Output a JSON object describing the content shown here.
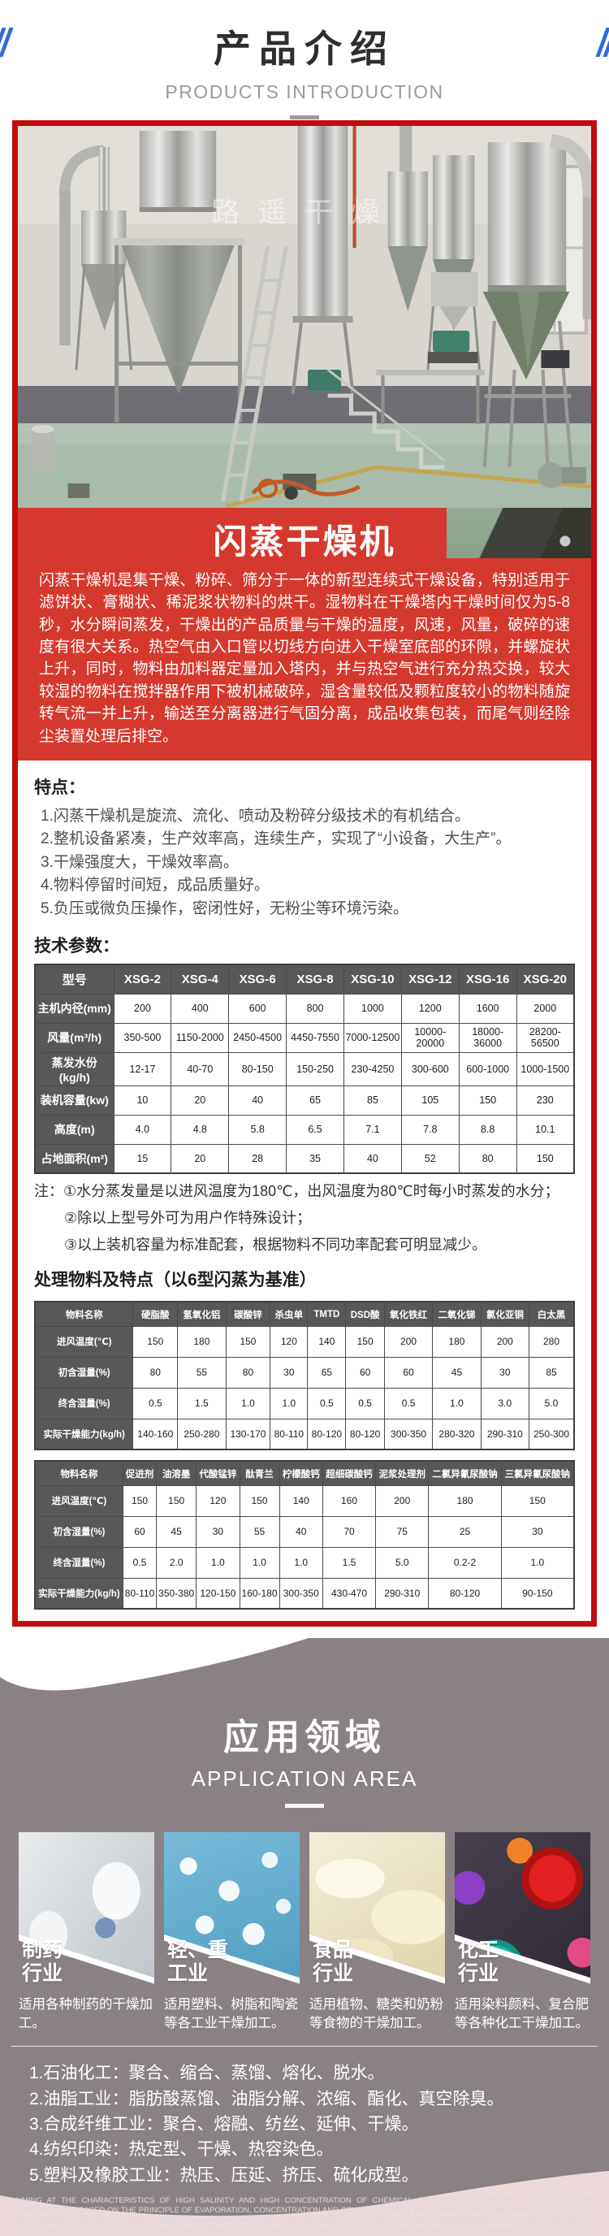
{
  "colors": {
    "accent_blue": "#2f6bdb",
    "red_border": "#c20d0d",
    "banner_red": "#d5392d",
    "section_gray": "#8a8185",
    "wave_pink": "#ecd9da",
    "table_header_bg": "#58585a"
  },
  "header": {
    "title": "产品介绍",
    "subtitle": "PRODUCTS INTRODUCTION"
  },
  "product": {
    "watermark": "路遥干燥",
    "name": "闪蒸干燥机",
    "description": "闪蒸干燥机是集干燥、粉碎、筛分于一体的新型连续式干燥设备，特别适用于滤饼状、膏糊状、稀泥浆状物料的烘干。湿物料在干燥塔内干燥时间仅为5-8秒，水分瞬间蒸发，干燥出的产品质量与干燥的温度，风速，风量，破碎的速度有很大关系。热空气由入口管以切线方向进入干燥室底部的环隙，并螺旋状上升，同时，物料由加料器定量加入塔内，并与热空气进行充分热交换，较大较湿的物料在搅拌器作用下被机械破碎，湿含量较低及颗粒度较小的物料随旋转气流一并上升，输送至分离器进行气固分离，成品收集包装，而尾气则经除尘装置处理后排空。"
  },
  "features": {
    "heading": "特点：",
    "items": [
      "1.闪蒸干燥机是旋流、流化、喷动及粉碎分级技术的有机结合。",
      "2.整机设备紧凑，生产效率高，连续生产，实现了“小设备，大生产”。",
      "3.干燥强度大，干燥效率高。",
      "4.物料停留时间短，成品质量好。",
      "5.负压或微负压操作，密闭性好，无粉尘等环境污染。"
    ]
  },
  "tech_params": {
    "heading": "技术参数：",
    "table": {
      "header": [
        "型号",
        "XSG-2",
        "XSG-4",
        "XSG-6",
        "XSG-8",
        "XSG-10",
        "XSG-12",
        "XSG-16",
        "XSG-20"
      ],
      "rows": [
        [
          "主机内径(mm)",
          "200",
          "400",
          "600",
          "800",
          "1000",
          "1200",
          "1600",
          "2000"
        ],
        [
          "风量(m³/h)",
          "350-500",
          "1150-2000",
          "2450-4500",
          "4450-7550",
          "7000-12500",
          "10000-20000",
          "18000-36000",
          "28200-56500"
        ],
        [
          "蒸发水份(kg/h)",
          "12-17",
          "40-70",
          "80-150",
          "150-250",
          "230-4250",
          "300-600",
          "600-1000",
          "1000-1500"
        ],
        [
          "装机容量(kw)",
          "10",
          "20",
          "40",
          "65",
          "85",
          "105",
          "150",
          "230"
        ],
        [
          "高度(m)",
          "4.0",
          "4.8",
          "5.8",
          "6.5",
          "7.1",
          "7.8",
          "8.8",
          "10.1"
        ],
        [
          "占地面积(m²)",
          "15",
          "20",
          "28",
          "35",
          "40",
          "52",
          "80",
          "150"
        ]
      ]
    },
    "notes": [
      "注：①水分蒸发量是以进风温度为180℃，出风温度为80℃时每小时蒸发的水分；",
      "②除以上型号外可为用户作特殊设计；",
      "③以上装机容量为标准配套，根据物料不同功率配套可明显减少。"
    ]
  },
  "materials": {
    "heading": "处理物料及特点（以6型闪蒸为基准）",
    "table1": {
      "header": [
        "物料名称",
        "硬脂酸",
        "氢氧化铝",
        "碳酸锌",
        "杀虫单",
        "TMTD",
        "DSD酸",
        "氧化铁红",
        "二氧化锑",
        "氯化亚铜",
        "白太黑"
      ],
      "rows": [
        [
          "进风温度(℃)",
          "150",
          "180",
          "150",
          "120",
          "140",
          "150",
          "200",
          "180",
          "200",
          "280"
        ],
        [
          "初含湿量(%)",
          "80",
          "55",
          "80",
          "30",
          "65",
          "60",
          "60",
          "45",
          "30",
          "85"
        ],
        [
          "终含湿量(%)",
          "0.5",
          "1.5",
          "1.0",
          "1.0",
          "0.5",
          "0.5",
          "0.5",
          "1.0",
          "3.0",
          "5.0"
        ],
        [
          "实际干燥能力(kg/h)",
          "140-160",
          "250-280",
          "130-170",
          "80-110",
          "80-120",
          "80-120",
          "300-350",
          "280-320",
          "290-310",
          "250-300"
        ]
      ]
    },
    "table2": {
      "header": [
        "物料名称",
        "促进剂",
        "油溶墨",
        "代酸锰锌",
        "酞青兰",
        "柠檬酸钙",
        "超细碳酸钙",
        "泥浆处理剂",
        "二氯异氰尿酸钠",
        "三氯异氰尿酸钠"
      ],
      "rows": [
        [
          "进风温度(℃)",
          "150",
          "150",
          "120",
          "150",
          "140",
          "160",
          "200",
          "180",
          "150"
        ],
        [
          "初含湿量(%)",
          "60",
          "45",
          "30",
          "55",
          "40",
          "70",
          "75",
          "25",
          "30"
        ],
        [
          "终含湿量(%)",
          "0.5",
          "2.0",
          "1.0",
          "1.0",
          "1.0",
          "1.5",
          "5.0",
          "0.2-2",
          "1.0"
        ],
        [
          "实际干燥能力(kg/h)",
          "80-110",
          "350-380",
          "120-150",
          "160-180",
          "300-350",
          "430-470",
          "290-310",
          "80-120",
          "90-150"
        ]
      ]
    }
  },
  "application": {
    "title": "应用领域",
    "subtitle": "APPLICATION AREA",
    "categories": [
      {
        "line1": "制药",
        "line2": "行业",
        "desc": "适用各种制药的干燥加工。"
      },
      {
        "line1": "轻、重",
        "line2": "工业",
        "desc": "适用塑料、树脂和陶瓷等各工业干燥加工。"
      },
      {
        "line1": "食品",
        "line2": "行业",
        "desc": "适用植物、糖类和奶粉等食物的干燥加工。"
      },
      {
        "line1": "化工",
        "line2": "行业",
        "desc": "适用染料颜料、复合肥等各种化工干燥加工。"
      }
    ],
    "industries": [
      "1.石油化工：聚合、缩合、蒸馏、熔化、脱水。",
      "2.油脂工业：脂肪酸蒸馏、油脂分解、浓缩、酯化、真空除臭。",
      "3.合成纤维工业：聚合、熔融、纺丝、延伸、干燥。",
      "4.纺织印染：热定型、干燥、热容染色。",
      "5.塑料及橡胶工业：热压、压延、挤压、硫化成型。"
    ],
    "fine_print": "AIMING AT THE CHARACTERISTICS OF HIGH SALINITY AND HIGH CONCENTRATION OF CHEMICAL ORGANIC WASTEWATER, THE WASTEWATER EVAPORATOR IS BASED ON THE PRINCIPLE OF EVAPORATION, CONCENTRATION AND CRYSTALLIZATION. MULTI EFFECT VACUUM EVAPORATION IS USED TO CONCENTRATE CRYSTALLINE ORGANIC WASTEWATER. AFTER THE SEPARATION OF SALT IN THE CONCENTRATED SOLUTION, THE SALT IS RECOVERED BY SALT COLLECTOR. THE CONCENTRATED SOLUTION IS DRIED AND RECYCLED OR INCINERATED. THE EVAPORATED CONDENSATE IS GENERALLY TREATED BY SUBSEQUENT BIOCHEMICAL TREATMENT, WHICH CAN MEET THE WASTEWATER DISCHARGE STANDARD."
  }
}
